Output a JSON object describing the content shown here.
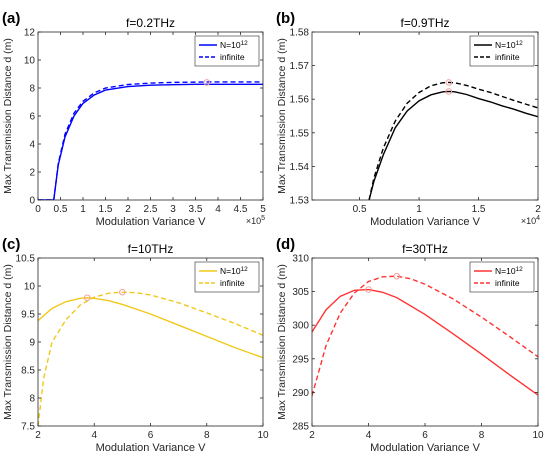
{
  "chart_data": [
    {
      "type": "line",
      "panel_label": "(a)",
      "title": "f=0.2THz",
      "xlabel": "Modulation Variance V",
      "ylabel": "Max Transmission Distance d (m)",
      "xlim": [
        0,
        5
      ],
      "ylim": [
        0,
        12
      ],
      "x_exponent": "5",
      "xticks": [
        0,
        0.5,
        1,
        1.5,
        2,
        2.5,
        3,
        3.5,
        4,
        4.5,
        5
      ],
      "yticks": [
        0,
        2,
        4,
        6,
        8,
        10,
        12
      ],
      "xtick_labels": [
        "0",
        "0.5",
        "1",
        "1.5",
        "2",
        "2.5",
        "3",
        "3.5",
        "4",
        "4.5",
        "5"
      ],
      "ytick_labels": [
        "0",
        "2",
        "4",
        "6",
        "8",
        "10",
        "12"
      ],
      "legend_position": "top-right",
      "series": [
        {
          "name_base": "N=10",
          "name_sup": "12",
          "color": "#0000ff",
          "dash": "solid",
          "x": [
            0,
            0.35,
            0.37,
            0.45,
            0.6,
            0.8,
            1.0,
            1.25,
            1.5,
            2.0,
            2.5,
            3.0,
            3.5,
            3.75,
            4.0,
            4.5,
            5.0
          ],
          "y": [
            0,
            0,
            0.5,
            2.5,
            4.5,
            6.0,
            6.9,
            7.5,
            7.85,
            8.1,
            8.2,
            8.24,
            8.26,
            8.26,
            8.26,
            8.26,
            8.26
          ]
        },
        {
          "name": "infinite",
          "color": "#0000ff",
          "dash": "dashed",
          "x": [
            0,
            0.35,
            0.37,
            0.45,
            0.6,
            0.8,
            1.0,
            1.25,
            1.5,
            2.0,
            2.5,
            3.0,
            3.5,
            3.75,
            4.0,
            4.5,
            5.0
          ],
          "y": [
            0,
            0,
            0.5,
            2.6,
            4.7,
            6.2,
            7.05,
            7.65,
            8.0,
            8.25,
            8.35,
            8.4,
            8.42,
            8.43,
            8.43,
            8.43,
            8.43
          ]
        }
      ],
      "markers": [
        {
          "x": 3.75,
          "y": 8.4
        }
      ]
    },
    {
      "type": "line",
      "panel_label": "(b)",
      "title": "f=0.9THz",
      "xlabel": "Modulation Variance V",
      "ylabel": "Max Transmission Distance d (m)",
      "xlim": [
        0.1,
        2
      ],
      "ylim": [
        1.53,
        1.58
      ],
      "x_exponent": "4",
      "xticks": [
        0.5,
        1,
        1.5,
        2
      ],
      "yticks": [
        1.53,
        1.54,
        1.55,
        1.56,
        1.57,
        1.58
      ],
      "xtick_labels": [
        "0.5",
        "1",
        "1.5",
        "2"
      ],
      "ytick_labels": [
        "1.53",
        "1.54",
        "1.55",
        "1.56",
        "1.57",
        "1.58"
      ],
      "legend_position": "top-right",
      "series": [
        {
          "name_base": "N=10",
          "name_sup": "12",
          "color": "#000000",
          "dash": "solid",
          "x": [
            0.58,
            0.62,
            0.7,
            0.8,
            0.9,
            1.0,
            1.1,
            1.2,
            1.25,
            1.3,
            1.4,
            1.5,
            1.6,
            1.7,
            1.8,
            1.9,
            2.0
          ],
          "y": [
            1.53,
            1.5355,
            1.5435,
            1.5515,
            1.5565,
            1.5595,
            1.5613,
            1.5622,
            1.5623,
            1.5622,
            1.5614,
            1.5602,
            1.5592,
            1.558,
            1.557,
            1.5558,
            1.5548
          ]
        },
        {
          "name": "infinite",
          "color": "#000000",
          "dash": "dashed",
          "x": [
            0.58,
            0.62,
            0.7,
            0.8,
            0.9,
            1.0,
            1.1,
            1.2,
            1.25,
            1.3,
            1.4,
            1.5,
            1.6,
            1.7,
            1.8,
            1.9,
            2.0
          ],
          "y": [
            1.53,
            1.5365,
            1.5455,
            1.5535,
            1.5588,
            1.562,
            1.564,
            1.5649,
            1.565,
            1.5649,
            1.5641,
            1.563,
            1.562,
            1.5608,
            1.5596,
            1.5585,
            1.5574
          ]
        }
      ],
      "markers": [
        {
          "x": 1.25,
          "y": 1.5623
        },
        {
          "x": 1.25,
          "y": 1.565
        }
      ]
    },
    {
      "type": "line",
      "panel_label": "(c)",
      "title": "f=10THz",
      "xlabel": "Modulation Variance V",
      "ylabel": "Max Transmission Distance d (m)",
      "xlim": [
        2,
        10
      ],
      "ylim": [
        7.5,
        10.5
      ],
      "x_exponent": "",
      "xticks": [
        2,
        4,
        6,
        8,
        10
      ],
      "yticks": [
        7.5,
        8,
        8.5,
        9,
        9.5,
        10,
        10.5
      ],
      "xtick_labels": [
        "2",
        "4",
        "6",
        "8",
        "10"
      ],
      "ytick_labels": [
        "7.5",
        "8",
        "8.5",
        "9",
        "9.5",
        "10",
        "10.5"
      ],
      "legend_position": "top-right",
      "series": [
        {
          "name_base": "N=10",
          "name_sup": "12",
          "color": "#f2c81a",
          "dash": "solid",
          "x": [
            2,
            2.5,
            3,
            3.5,
            3.75,
            4,
            4.5,
            5,
            6,
            7,
            8,
            9,
            10
          ],
          "y": [
            9.38,
            9.6,
            9.72,
            9.78,
            9.79,
            9.78,
            9.74,
            9.67,
            9.5,
            9.3,
            9.1,
            8.9,
            8.72
          ]
        },
        {
          "name": "infinite",
          "color": "#f2c81a",
          "dash": "dashed",
          "x": [
            2,
            2.2,
            2.5,
            3,
            3.5,
            4,
            4.5,
            5,
            5.5,
            6,
            7,
            8,
            9,
            10
          ],
          "y": [
            7.5,
            8.35,
            9.0,
            9.4,
            9.66,
            9.8,
            9.87,
            9.89,
            9.88,
            9.84,
            9.7,
            9.52,
            9.33,
            9.12
          ]
        }
      ],
      "markers": [
        {
          "x": 3.75,
          "y": 9.79
        },
        {
          "x": 5.0,
          "y": 9.89
        }
      ]
    },
    {
      "type": "line",
      "panel_label": "(d)",
      "title": "f=30THz",
      "xlabel": "Modulation Variance V",
      "ylabel": "Max Transmission Distance d (m)",
      "xlim": [
        2,
        10
      ],
      "ylim": [
        285,
        310
      ],
      "x_exponent": "",
      "xticks": [
        2,
        4,
        6,
        8,
        10
      ],
      "yticks": [
        285,
        290,
        295,
        300,
        305,
        310
      ],
      "xtick_labels": [
        "2",
        "4",
        "6",
        "8",
        "10"
      ],
      "ytick_labels": [
        "285",
        "290",
        "295",
        "300",
        "305",
        "310"
      ],
      "legend_position": "top-right",
      "series": [
        {
          "name_base": "N=10",
          "name_sup": "12",
          "color": "#ff3333",
          "dash": "solid",
          "x": [
            2,
            2.5,
            3,
            3.5,
            4,
            4.5,
            5,
            6,
            7,
            8,
            9,
            10
          ],
          "y": [
            299,
            302.3,
            304.3,
            305.2,
            305.3,
            304.9,
            304.1,
            301.6,
            298.7,
            295.7,
            292.6,
            289.6
          ]
        },
        {
          "name": "infinite",
          "color": "#ff3333",
          "dash": "dashed",
          "x": [
            2,
            2.5,
            3,
            3.5,
            4,
            4.5,
            5,
            5.5,
            6,
            7,
            8,
            9,
            10
          ],
          "y": [
            289.5,
            297,
            301.8,
            304.8,
            306.5,
            307.2,
            307.3,
            306.9,
            306.1,
            303.9,
            301.2,
            298.3,
            295.3
          ]
        }
      ],
      "markers": [
        {
          "x": 4.0,
          "y": 305.3
        },
        {
          "x": 5.0,
          "y": 307.3
        }
      ]
    }
  ],
  "marker_color": "#f4a0a0"
}
